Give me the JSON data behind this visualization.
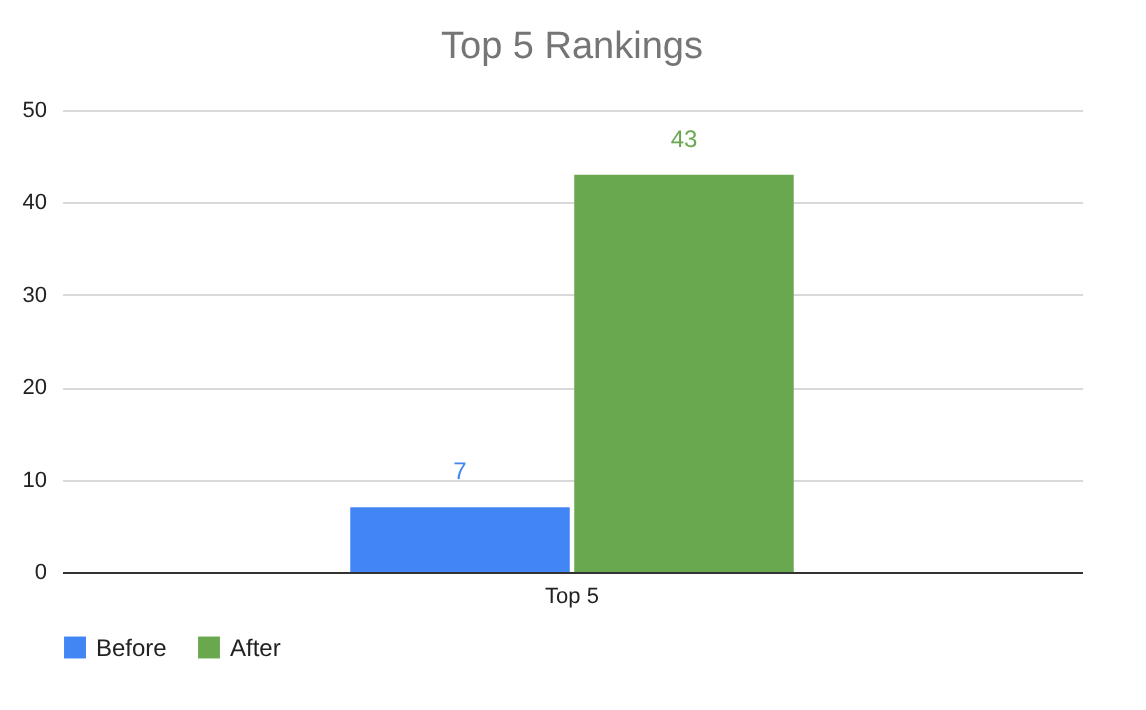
{
  "chart_data": {
    "type": "bar",
    "title": "Top 5 Rankings",
    "categories": [
      "Top 5"
    ],
    "series": [
      {
        "name": "Before",
        "color": "#4285f4",
        "values": [
          7
        ]
      },
      {
        "name": "After",
        "color": "#6aa84f",
        "values": [
          43
        ]
      }
    ],
    "ylim": [
      0,
      50
    ],
    "yticks": [
      0,
      10,
      20,
      30,
      40,
      50
    ],
    "grid": "y",
    "legend": "bottom",
    "data_labels": true
  }
}
